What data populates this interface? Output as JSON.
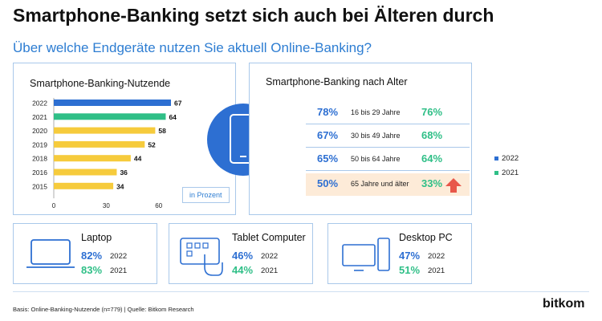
{
  "title": "Smartphone-Banking setzt sich auch bei Älteren durch",
  "subtitle": "Über welche Endgeräte nutzen Sie aktuell Online-Banking?",
  "colors": {
    "blue": "#2d6fd2",
    "green": "#2fbf87",
    "yellow": "#f6cb3c",
    "highlight": "#fdebd8",
    "arrow": "#e8574a"
  },
  "chart_data": [
    {
      "type": "bar",
      "title": "Smartphone-Banking-Nutzende",
      "categories": [
        "2022",
        "2021",
        "2020",
        "2019",
        "2018",
        "2016",
        "2015"
      ],
      "values": [
        67,
        64,
        58,
        52,
        44,
        36,
        34
      ],
      "bar_colors": [
        "#2d6fd2",
        "#2fbf87",
        "#f6cb3c",
        "#f6cb3c",
        "#f6cb3c",
        "#f6cb3c",
        "#f6cb3c"
      ],
      "xticks": [
        "0",
        "30",
        "60"
      ],
      "xlim": [
        0,
        67
      ],
      "unit_note": "in Prozent"
    },
    {
      "type": "table",
      "title": "Smartphone-Banking nach Alter",
      "legend": [
        {
          "name": "2022",
          "color": "#2d6fd2"
        },
        {
          "name": "2021",
          "color": "#2fbf87"
        }
      ],
      "rows": [
        {
          "age": "16 bis 29 Jahre",
          "v2022": "78%",
          "v2021": "76%"
        },
        {
          "age": "30 bis 49 Jahre",
          "v2022": "67%",
          "v2021": "68%"
        },
        {
          "age": "50 bis 64 Jahre",
          "v2022": "65%",
          "v2021": "64%"
        },
        {
          "age": "65 Jahre und älter",
          "v2022": "50%",
          "v2021": "33%"
        }
      ]
    },
    {
      "type": "table",
      "devices": [
        {
          "name": "Laptop",
          "v2022": "82%",
          "v2021": "83%",
          "y2022": "2022",
          "y2021": "2021"
        },
        {
          "name": "Tablet Computer",
          "v2022": "46%",
          "v2021": "44%",
          "y2022": "2022",
          "y2021": "2021"
        },
        {
          "name": "Desktop PC",
          "v2022": "47%",
          "v2021": "51%",
          "y2022": "2022",
          "y2021": "2021"
        }
      ]
    }
  ],
  "footer": "Basis: Online-Banking-Nutzende (n=779) | Quelle: Bitkom Research",
  "logo": "bitkom"
}
